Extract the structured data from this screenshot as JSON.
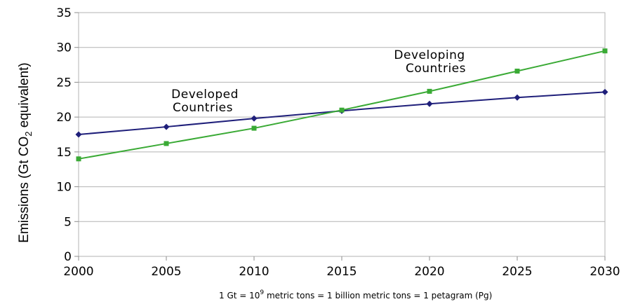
{
  "chart_data": {
    "type": "line",
    "x": [
      2000,
      2005,
      2010,
      2015,
      2020,
      2025,
      2030
    ],
    "xlim": [
      2000,
      2030
    ],
    "ylim": [
      0,
      35
    ],
    "yticks": [
      "0",
      "5",
      "10",
      "15",
      "20",
      "25",
      "30",
      "35"
    ],
    "xticks": [
      "2000",
      "2005",
      "2010",
      "2015",
      "2020",
      "2025",
      "2030"
    ],
    "ylabel": {
      "prefix": "Emissions (Gt CO",
      "subscript": "2",
      "suffix": " equivalent)"
    },
    "grid": "horizontal",
    "series": [
      {
        "label_line1": "Developed",
        "label_line2": "Countries",
        "color": "#1f1f7a",
        "marker": "diamond",
        "values": [
          17.5,
          18.6,
          19.8,
          20.9,
          21.9,
          22.8,
          23.6
        ]
      },
      {
        "label_line1": "Developing",
        "label_line2": "Countries",
        "color": "#3aaa35",
        "marker": "square",
        "values": [
          14.0,
          16.2,
          18.4,
          21.0,
          23.7,
          26.6,
          29.5
        ]
      }
    ],
    "footnote": {
      "prefix": "1 Gt = 10",
      "superscript": "9",
      "suffix": " metric tons = 1 billion metric tons = 1 petagram (Pg)"
    }
  }
}
